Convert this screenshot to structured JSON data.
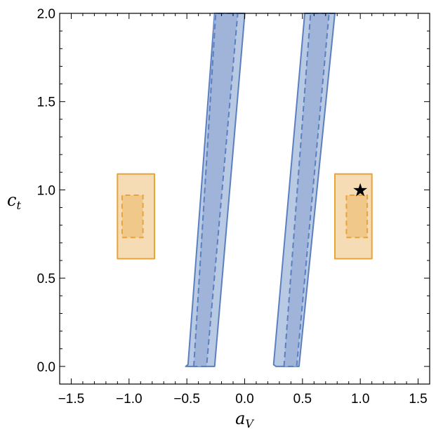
{
  "chart_data": {
    "type": "area",
    "xlabel": {
      "main": "a",
      "sub": "V"
    },
    "ylabel": {
      "main": "c",
      "sub": "t"
    },
    "xlim": [
      -1.6,
      1.6
    ],
    "ylim": [
      -0.1,
      2.0
    ],
    "x_ticks": [
      -1.5,
      -1.0,
      -0.5,
      0.0,
      0.5,
      1.0,
      1.5
    ],
    "x_tick_labels": [
      "−1.5",
      "−1.0",
      "−0.5",
      "0.0",
      "0.5",
      "1.0",
      "1.5"
    ],
    "y_ticks": [
      0.0,
      0.5,
      1.0,
      1.5,
      2.0
    ],
    "y_tick_labels": [
      "0.0",
      "0.5",
      "1.0",
      "1.5",
      "2.0"
    ],
    "grid": false,
    "colors": {
      "blue_edge": "#5b7fbf",
      "blue_outer": "#b8c9e3",
      "blue_inner": "#9fb4d8",
      "orange_edge": "#e8a33a",
      "orange_outer": "#f6dcb5",
      "orange_inner": "#f0c88a"
    },
    "blue_bands": [
      {
        "outer": [
          [
            -0.51,
            0.0
          ],
          [
            -0.49,
            0.01
          ],
          [
            -0.26,
            2.0
          ],
          [
            0.0,
            2.0
          ],
          [
            0.0,
            1.99
          ],
          [
            -0.26,
            0.0
          ]
        ],
        "inner": [
          [
            -0.44,
            0.0
          ],
          [
            -0.26,
            2.0
          ],
          [
            -0.06,
            2.0
          ],
          [
            -0.33,
            0.0
          ]
        ],
        "dashed": [
          [
            -0.44,
            0.0
          ],
          [
            -0.25,
            2.0
          ],
          [
            -0.06,
            2.0
          ],
          [
            -0.33,
            0.0
          ]
        ]
      },
      {
        "outer": [
          [
            0.27,
            0.0
          ],
          [
            0.25,
            0.01
          ],
          [
            0.52,
            2.0
          ],
          [
            0.78,
            2.0
          ],
          [
            0.47,
            0.0
          ]
        ],
        "inner": [
          [
            0.34,
            0.0
          ],
          [
            0.57,
            2.0
          ],
          [
            0.73,
            2.0
          ],
          [
            0.45,
            0.0
          ]
        ],
        "dashed": [
          [
            0.34,
            0.0
          ],
          [
            0.57,
            2.0
          ],
          [
            0.73,
            2.0
          ],
          [
            0.45,
            0.0
          ]
        ]
      }
    ],
    "orange_regions": [
      {
        "outer": [
          [
            -1.1,
            0.61
          ],
          [
            -0.78,
            0.61
          ],
          [
            -0.78,
            1.09
          ],
          [
            -1.1,
            1.09
          ]
        ],
        "inner": [
          [
            -1.06,
            0.73
          ],
          [
            -0.88,
            0.73
          ],
          [
            -0.88,
            0.97
          ],
          [
            -1.06,
            0.97
          ]
        ]
      },
      {
        "outer": [
          [
            0.78,
            0.61
          ],
          [
            1.1,
            0.61
          ],
          [
            1.1,
            1.09
          ],
          [
            0.78,
            1.09
          ]
        ],
        "inner": [
          [
            0.88,
            0.73
          ],
          [
            1.06,
            0.73
          ],
          [
            1.06,
            0.97
          ],
          [
            0.88,
            0.97
          ]
        ]
      }
    ],
    "markers": [
      {
        "symbol": "★",
        "x": 1.0,
        "y": 1.0,
        "color": "#000000"
      }
    ]
  }
}
